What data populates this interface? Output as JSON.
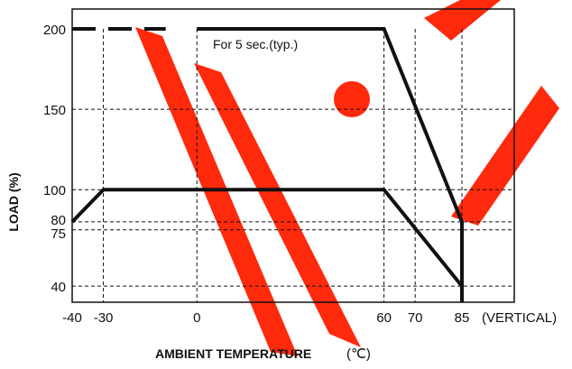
{
  "chart_data": {
    "type": "line",
    "xlabel": "AMBIENT TEMPERATURE",
    "xlabel_unit": "(℃)",
    "ylabel": "LOAD (%)",
    "xlim": [
      -40,
      85
    ],
    "ylim": [
      30,
      200
    ],
    "x_ticks": [
      "-40",
      "-30",
      "0",
      "60",
      "70",
      "85"
    ],
    "x_tick_values": [
      -40,
      -30,
      0,
      60,
      70,
      85
    ],
    "x_tick_suffix": "(VERTICAL)",
    "highlight_tick": "60",
    "highlight_color": "#2a9da6",
    "y_ticks": [
      "200",
      "150",
      "100",
      "80",
      "75",
      "40"
    ],
    "y_tick_values": [
      200,
      150,
      100,
      80,
      75,
      40
    ],
    "grid": "dashed at tick values",
    "annotation": "For 5 sec.(typ.)",
    "series": [
      {
        "role": "peak-load",
        "points": [
          [
            -40,
            200
          ],
          [
            0,
            200
          ],
          [
            60,
            200
          ],
          [
            85,
            80
          ],
          [
            85,
            30
          ]
        ],
        "dashed_segment": [
          [
            -40,
            200
          ],
          [
            -10,
            200
          ]
        ]
      },
      {
        "role": "continuous-load",
        "points": [
          [
            -40,
            80
          ],
          [
            -30,
            100
          ],
          [
            60,
            100
          ],
          [
            85,
            40
          ],
          [
            85,
            30
          ]
        ]
      }
    ],
    "watermark_color": "#ff1e00"
  }
}
